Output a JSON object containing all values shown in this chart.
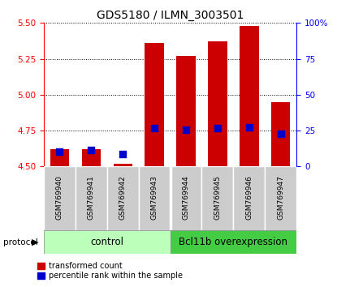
{
  "title": "GDS5180 / ILMN_3003501",
  "samples": [
    "GSM769940",
    "GSM769941",
    "GSM769942",
    "GSM769943",
    "GSM769944",
    "GSM769945",
    "GSM769946",
    "GSM769947"
  ],
  "transformed_count": [
    4.62,
    4.62,
    4.52,
    5.36,
    5.27,
    5.37,
    5.48,
    4.95
  ],
  "percentile_rank": [
    10.5,
    11.5,
    8.5,
    26.5,
    25.5,
    26.5,
    27.5,
    22.5
  ],
  "ylim_left": [
    4.5,
    5.5
  ],
  "ylim_right": [
    0,
    100
  ],
  "yticks_left": [
    4.5,
    4.75,
    5.0,
    5.25,
    5.5
  ],
  "yticks_right": [
    0,
    25,
    50,
    75,
    100
  ],
  "bar_color": "#cc0000",
  "dot_color": "#0000cc",
  "bar_bottom": 4.5,
  "group_control_label": "control",
  "group_overexpression_label": "Bcl11b overexpression",
  "group_control_color": "#bbffbb",
  "group_overexpression_color": "#44cc44",
  "protocol_label": "protocol",
  "legend_bar_label": "transformed count",
  "legend_dot_label": "percentile rank within the sample",
  "bar_width": 0.6,
  "sample_bg_color": "#cccccc",
  "n_control": 4,
  "n_total": 8
}
